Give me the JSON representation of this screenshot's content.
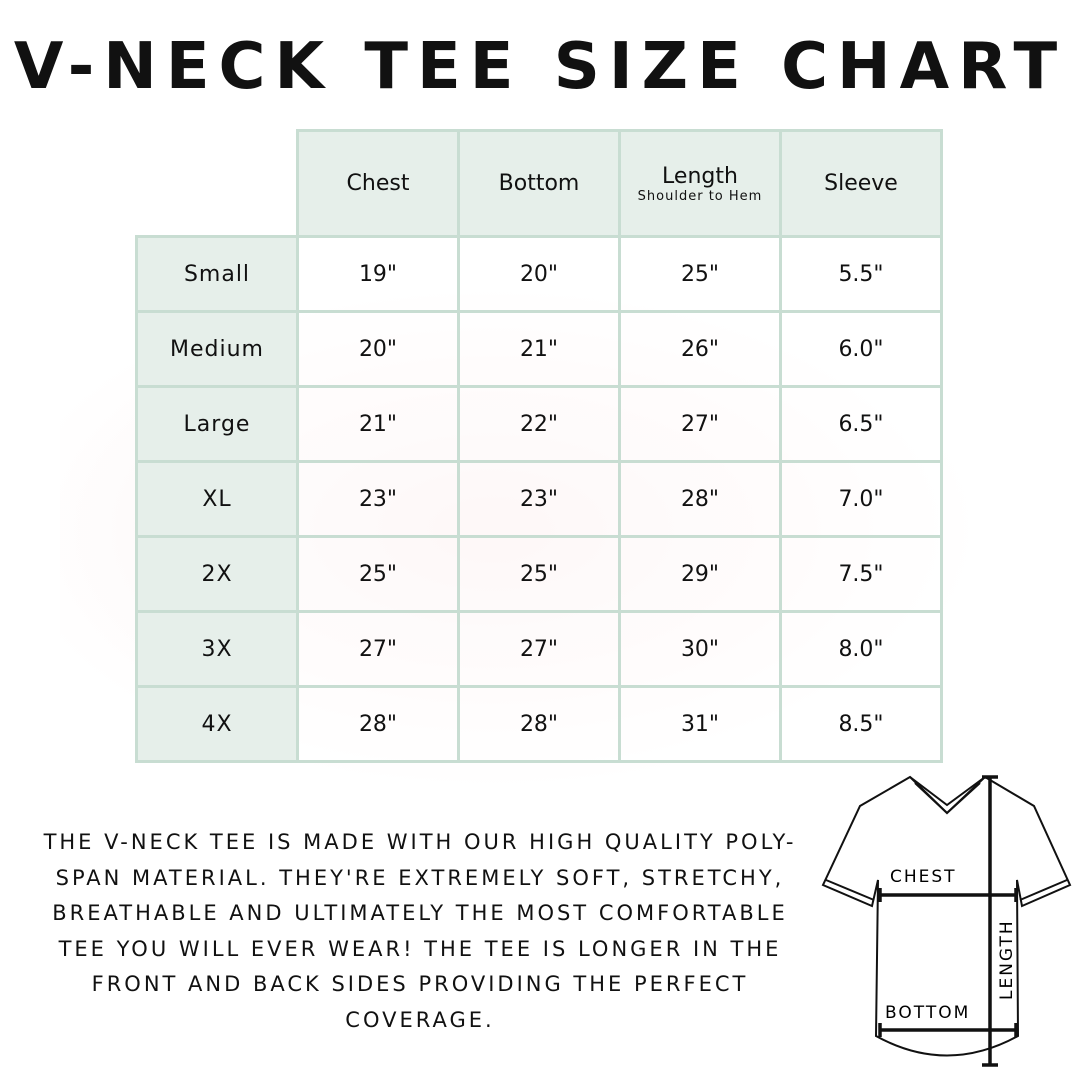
{
  "title": "V-NECK TEE SIZE CHART",
  "table": {
    "headers": [
      {
        "label": "Chest",
        "sub": ""
      },
      {
        "label": "Bottom",
        "sub": ""
      },
      {
        "label": "Length",
        "sub": "Shoulder to Hem"
      },
      {
        "label": "Sleeve",
        "sub": ""
      }
    ],
    "rows": [
      {
        "size": "Small",
        "values": [
          "19\"",
          "20\"",
          "25\"",
          "5.5\""
        ]
      },
      {
        "size": "Medium",
        "values": [
          "20\"",
          "21\"",
          "26\"",
          "6.0\""
        ]
      },
      {
        "size": "Large",
        "values": [
          "21\"",
          "22\"",
          "27\"",
          "6.5\""
        ]
      },
      {
        "size": "XL",
        "values": [
          "23\"",
          "23\"",
          "28\"",
          "7.0\""
        ]
      },
      {
        "size": "2X",
        "values": [
          "25\"",
          "25\"",
          "29\"",
          "7.5\""
        ]
      },
      {
        "size": "3X",
        "values": [
          "27\"",
          "27\"",
          "30\"",
          "8.0\""
        ]
      },
      {
        "size": "4X",
        "values": [
          "28\"",
          "28\"",
          "31\"",
          "8.5\""
        ]
      }
    ]
  },
  "description": "The V-neck tee is made with our high quality poly-span material. They're extremely soft, stretchy, breathable and ultimately the most comfortable tee you will ever wear! The tee is longer in the front and back sides providing the perfect coverage.",
  "diagram": {
    "chest": "CHEST",
    "bottom": "BOTTOM",
    "length": "LENGTH"
  },
  "colors": {
    "header_bg": "#e6efea",
    "border": "#c8ddd2"
  }
}
